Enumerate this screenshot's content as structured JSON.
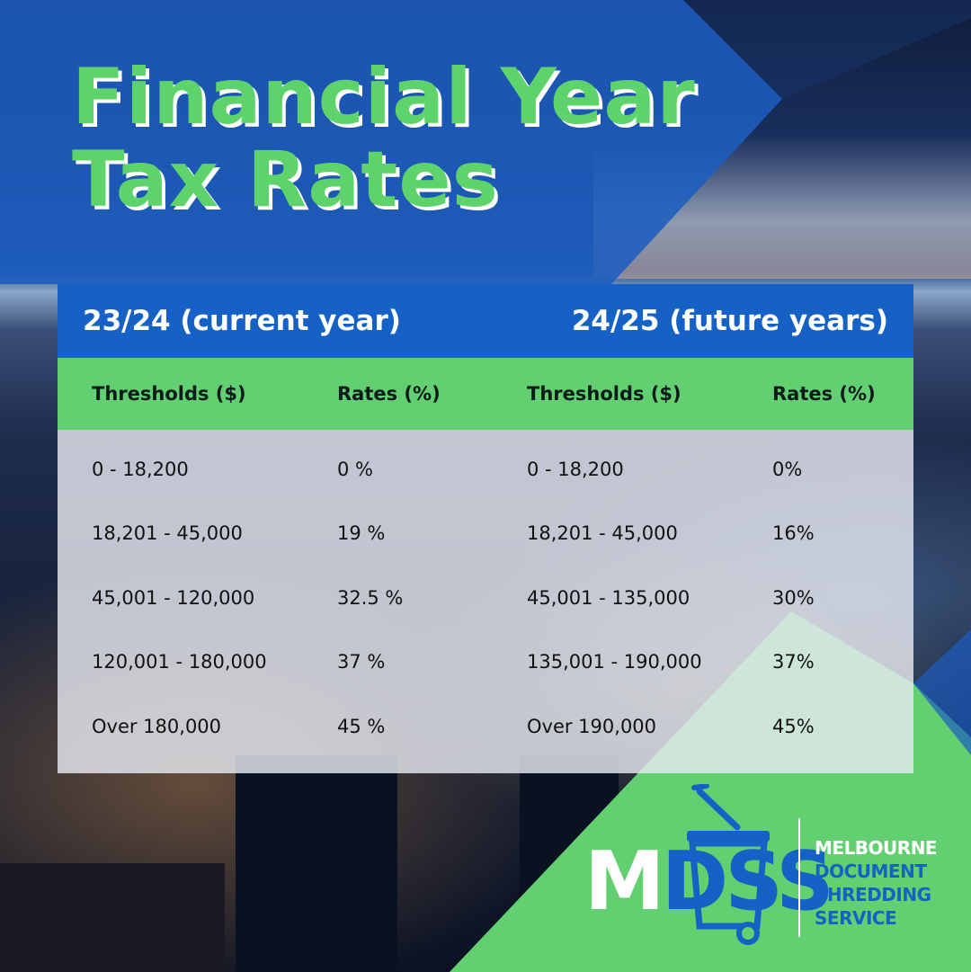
{
  "title": {
    "line1": "Financial Year",
    "line2": "Tax Rates"
  },
  "table": {
    "current_label": "23/24 (current year)",
    "future_label": "24/25 (future years)",
    "headers": [
      "Thresholds ($)",
      "Rates (%)",
      "Thresholds ($)",
      "Rates (%)"
    ],
    "rows": [
      [
        "0 - 18,200",
        "0 %",
        "0 - 18,200",
        "0%"
      ],
      [
        "18,201 - 45,000",
        "19 %",
        "18,201 - 45,000",
        "16%"
      ],
      [
        "45,001 - 120,000",
        "32.5 %",
        "45,001 - 135,000",
        "30%"
      ],
      [
        "120,001 - 180,000",
        "37 %",
        "135,001 - 190,000",
        "37%"
      ],
      [
        "Over 180,000",
        "45 %",
        "Over 190,000",
        "45%"
      ]
    ]
  },
  "logo": {
    "letters_m": "M",
    "letters_dss": "DSS",
    "line1": "MELBOURNE",
    "line2": "DOCUMENT",
    "line3": "SHREDDING",
    "line4": "SERVICE"
  },
  "colors": {
    "brand_blue": "#1561c5",
    "brand_green": "#62d070",
    "title_green": "#5fd36b"
  },
  "icons": [
    "shredder-bin-icon"
  ]
}
